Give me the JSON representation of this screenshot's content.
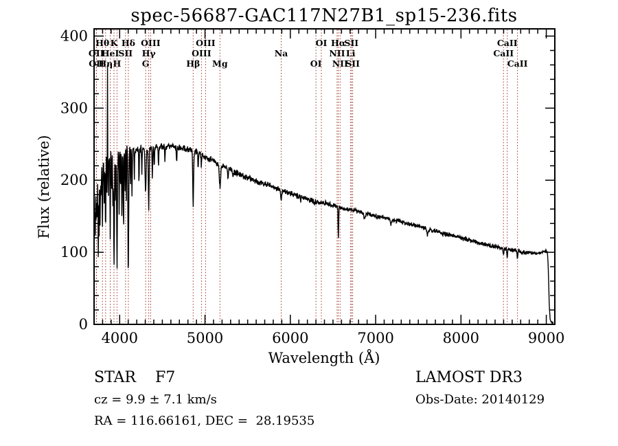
{
  "title": "spec-56687-GAC117N27B1_sp15-236.fits",
  "footer": {
    "class_label": "STAR    F7",
    "cz": "cz = 9.9 ± 7.1 km/s",
    "radec": "RA = 116.66161, DEC =  28.19535",
    "survey": "LAMOST DR3",
    "obs_date": "Obs-Date: 20140129"
  },
  "chart_data": {
    "type": "line",
    "title": "spec-56687-GAC117N27B1_sp15-236.fits",
    "xlabel": "Wavelength (Å)",
    "ylabel": "Flux (relative)",
    "xlim": [
      3700,
      9100
    ],
    "ylim": [
      0,
      410
    ],
    "x_ticks": [
      4000,
      5000,
      6000,
      7000,
      8000,
      9000
    ],
    "y_ticks": [
      0,
      100,
      200,
      300,
      400
    ],
    "x_minor_step": 100,
    "y_minor_step": 20,
    "grid": false,
    "legend": null,
    "line_color": "#000000",
    "marker_line_color": "#9e3a31",
    "spectral_line_markers": [
      {
        "label": "OII",
        "wavelength": 3726.0,
        "row": 2
      },
      {
        "label": "OII",
        "wavelength": 3728.8,
        "row": 3
      },
      {
        "label": "Hθ",
        "wavelength": 3797.9,
        "row": 1
      },
      {
        "label": "Hη",
        "wavelength": 3835.4,
        "row": 3
      },
      {
        "label": "HeI",
        "wavelength": 3889.0,
        "row": 2
      },
      {
        "label": "K",
        "wavelength": 3933.7,
        "row": 1
      },
      {
        "label": "H",
        "wavelength": 3968.5,
        "row": 3
      },
      {
        "label": "SII",
        "wavelength": 4068.6,
        "row": 2
      },
      {
        "label": "Hδ",
        "wavelength": 4101.7,
        "row": 1
      },
      {
        "label": "G",
        "wavelength": 4304.4,
        "row": 3
      },
      {
        "label": "Hγ",
        "wavelength": 4340.5,
        "row": 2
      },
      {
        "label": "OIII",
        "wavelength": 4363.2,
        "row": 1
      },
      {
        "label": "Hβ",
        "wavelength": 4861.3,
        "row": 3
      },
      {
        "label": "OIII",
        "wavelength": 4958.9,
        "row": 2
      },
      {
        "label": "OIII",
        "wavelength": 5006.8,
        "row": 1
      },
      {
        "label": "Mg",
        "wavelength": 5175.3,
        "row": 3
      },
      {
        "label": "Na",
        "wavelength": 5893.0,
        "row": 2
      },
      {
        "label": "OI",
        "wavelength": 6300.3,
        "row": 3
      },
      {
        "label": "OI",
        "wavelength": 6363.8,
        "row": 1
      },
      {
        "label": "NII",
        "wavelength": 6548.0,
        "row": 2
      },
      {
        "label": "Hα",
        "wavelength": 6562.8,
        "row": 1
      },
      {
        "label": "NII",
        "wavelength": 6583.5,
        "row": 3
      },
      {
        "label": "Li",
        "wavelength": 6707.4,
        "row": 2
      },
      {
        "label": "SII",
        "wavelength": 6716.4,
        "row": 1
      },
      {
        "label": "SII",
        "wavelength": 6730.8,
        "row": 3
      },
      {
        "label": "CaII",
        "wavelength": 8498.0,
        "row": 2
      },
      {
        "label": "CaII",
        "wavelength": 8542.1,
        "row": 1
      },
      {
        "label": "CaII",
        "wavelength": 8662.1,
        "row": 3
      }
    ],
    "continuum_points": [
      [
        3700,
        140
      ],
      [
        3715,
        165
      ],
      [
        3730,
        185
      ],
      [
        3745,
        195
      ],
      [
        3765,
        205
      ],
      [
        3790,
        215
      ],
      [
        3815,
        222
      ],
      [
        3840,
        227
      ],
      [
        3870,
        231
      ],
      [
        3910,
        235
      ],
      [
        3960,
        238
      ],
      [
        4020,
        241
      ],
      [
        4120,
        243
      ],
      [
        4250,
        244
      ],
      [
        4400,
        246
      ],
      [
        4550,
        247
      ],
      [
        4700,
        245
      ],
      [
        4850,
        241
      ],
      [
        5000,
        233
      ],
      [
        5150,
        224
      ],
      [
        5300,
        214
      ],
      [
        5450,
        206
      ],
      [
        5600,
        199
      ],
      [
        5750,
        193
      ],
      [
        5900,
        186
      ],
      [
        6050,
        180
      ],
      [
        6200,
        174
      ],
      [
        6350,
        169
      ],
      [
        6500,
        165
      ],
      [
        6650,
        160
      ],
      [
        6800,
        157
      ],
      [
        7000,
        150
      ],
      [
        7200,
        145
      ],
      [
        7400,
        139
      ],
      [
        7600,
        133
      ],
      [
        7800,
        126
      ],
      [
        8000,
        120
      ],
      [
        8200,
        113
      ],
      [
        8400,
        108
      ],
      [
        8600,
        103
      ],
      [
        8750,
        100
      ],
      [
        8900,
        98
      ],
      [
        8970,
        101
      ],
      [
        9000,
        102
      ],
      [
        9015,
        98
      ],
      [
        9025,
        70
      ],
      [
        9035,
        25
      ],
      [
        9045,
        6
      ],
      [
        9060,
        3
      ],
      [
        9085,
        2
      ]
    ],
    "absorption_lines": [
      [
        3712,
        0.28,
        2.5
      ],
      [
        3726,
        0.22,
        2.5
      ],
      [
        3737,
        0.3,
        2.5
      ],
      [
        3750,
        0.5,
        3
      ],
      [
        3760,
        0.22,
        2.5
      ],
      [
        3771,
        0.42,
        2.5
      ],
      [
        3782,
        0.18,
        2.5
      ],
      [
        3798,
        0.42,
        3
      ],
      [
        3820,
        0.28,
        2.5
      ],
      [
        3835,
        0.5,
        3
      ],
      [
        3850,
        0.22,
        2.5
      ],
      [
        3868,
        0.25,
        2.5
      ],
      [
        3889,
        0.5,
        3
      ],
      [
        3906,
        0.24,
        2.5
      ],
      [
        3920,
        0.28,
        2.5
      ],
      [
        3933.7,
        0.65,
        4.5
      ],
      [
        3950,
        0.28,
        2.5
      ],
      [
        3968.5,
        0.65,
        4.5
      ],
      [
        3995,
        0.22,
        2.5
      ],
      [
        4010,
        0.22,
        2.5
      ],
      [
        4026,
        0.38,
        3
      ],
      [
        4045,
        0.45,
        3
      ],
      [
        4063,
        0.22,
        2.5
      ],
      [
        4078,
        0.28,
        2.5
      ],
      [
        4101.7,
        0.68,
        4.5
      ],
      [
        4126,
        0.22,
        2.5
      ],
      [
        4144,
        0.28,
        3
      ],
      [
        4172,
        0.18,
        2.5
      ],
      [
        4226,
        0.22,
        3
      ],
      [
        4260,
        0.14,
        3
      ],
      [
        4304,
        0.26,
        6
      ],
      [
        4340.5,
        0.36,
        4.5
      ],
      [
        4383,
        0.18,
        3
      ],
      [
        4405,
        0.12,
        3
      ],
      [
        4455,
        0.1,
        3
      ],
      [
        4530,
        0.08,
        3
      ],
      [
        4668,
        0.09,
        3
      ],
      [
        4861.3,
        0.34,
        4.5
      ],
      [
        4920,
        0.09,
        3
      ],
      [
        4957,
        0.06,
        3
      ],
      [
        5175,
        0.14,
        8
      ],
      [
        5270,
        0.07,
        4
      ],
      [
        5329,
        0.05,
        3
      ],
      [
        5893,
        0.07,
        6
      ],
      [
        6122,
        0.04,
        3
      ],
      [
        6280,
        0.04,
        5
      ],
      [
        6562.8,
        0.27,
        3.5
      ],
      [
        6870,
        0.05,
        8
      ],
      [
        7180,
        0.04,
        8
      ],
      [
        7605,
        0.06,
        9
      ],
      [
        8498,
        0.09,
        4
      ],
      [
        8542,
        0.12,
        4
      ],
      [
        8662,
        0.12,
        4
      ]
    ],
    "emission_spikes": [
      [
        3858,
        130,
        1.5
      ]
    ],
    "noise_profile": [
      [
        3700,
        22
      ],
      [
        3850,
        20
      ],
      [
        3950,
        16
      ],
      [
        4050,
        11
      ],
      [
        4200,
        7.5
      ],
      [
        4500,
        6
      ],
      [
        5000,
        5.5
      ],
      [
        5600,
        5
      ],
      [
        6300,
        4.5
      ],
      [
        7000,
        4
      ],
      [
        8000,
        3.8
      ],
      [
        8800,
        3.2
      ],
      [
        9100,
        2.5
      ]
    ]
  }
}
